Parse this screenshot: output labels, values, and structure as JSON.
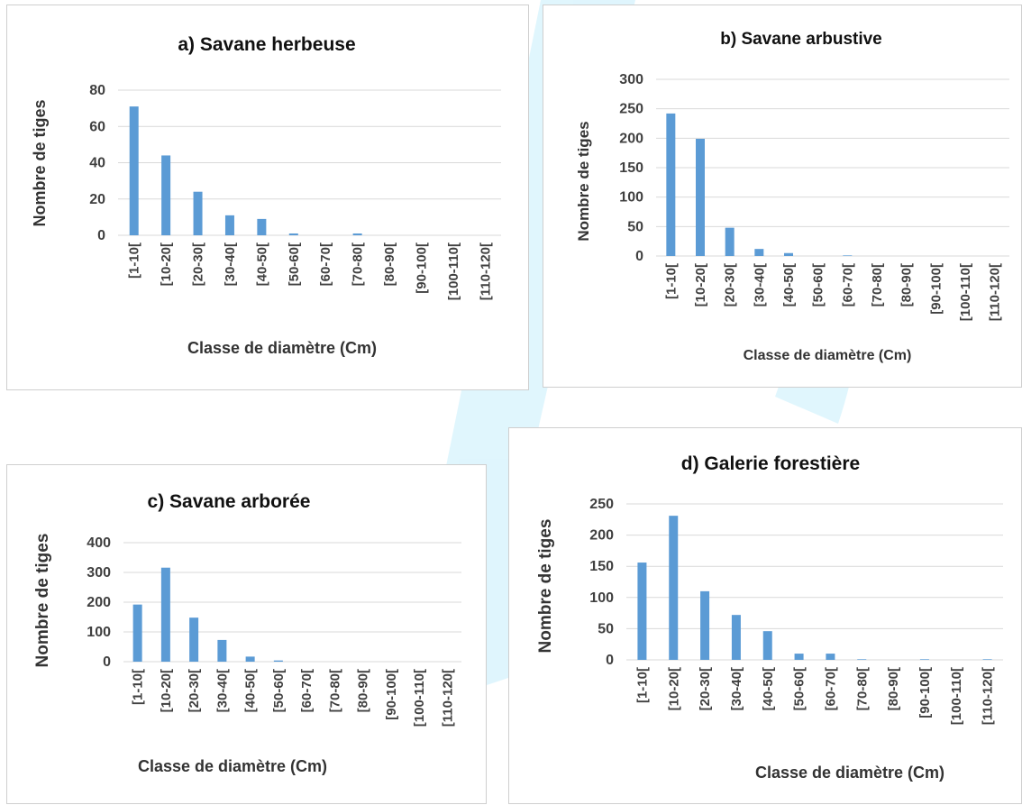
{
  "colors": {
    "bar": "#5b9bd5",
    "grid": "#d9d9d9",
    "watermark": "#00b4f0"
  },
  "chart_data": [
    {
      "id": "a",
      "type": "bar",
      "title": "a) Savane herbeuse",
      "xlabel": "Classe de diamètre (Cm)",
      "ylabel": "Nombre de tiges",
      "categories": [
        "[1-10[",
        "[10-20[",
        "[20-30[",
        "[30-40[",
        "[40-50[",
        "[50-60[",
        "[60-70[",
        "[70-80[",
        "[80-90[",
        "[90-100[",
        "[100-110[",
        "[110-120["
      ],
      "values": [
        71,
        44,
        24,
        11,
        9,
        1,
        0,
        1,
        0,
        0,
        0,
        0
      ],
      "ylim": [
        0,
        80
      ],
      "yticks": [
        0,
        20,
        40,
        60,
        80
      ],
      "grid": true,
      "legend": "none"
    },
    {
      "id": "b",
      "type": "bar",
      "title": "b) Savane arbustive",
      "xlabel": "Classe de diamètre (Cm)",
      "ylabel": "Nombre de tiges",
      "categories": [
        "[1-10[",
        "[10-20[",
        "[20-30[",
        "[30-40[",
        "[40-50[",
        "[50-60[",
        "[60-70[",
        "[70-80[",
        "[80-90[",
        "[90-100[",
        "[100-110[",
        "[110-120["
      ],
      "values": [
        242,
        199,
        48,
        12,
        5,
        0,
        1,
        0,
        0,
        0,
        0,
        0
      ],
      "ylim": [
        0,
        300
      ],
      "yticks": [
        0,
        50,
        100,
        150,
        200,
        250,
        300
      ],
      "grid": true,
      "legend": "none"
    },
    {
      "id": "c",
      "type": "bar",
      "title": "c) Savane arborée",
      "xlabel": "Classe de diamètre (Cm)",
      "ylabel": "Nombre de tiges",
      "categories": [
        "[1-10[",
        "[10-20[",
        "[20-30[",
        "[30-40[",
        "[40-50[",
        "[50-60[",
        "[60-70[",
        "[70-80[",
        "[80-90[",
        "[90-100[",
        "[100-110[",
        "[110-120["
      ],
      "values": [
        192,
        316,
        148,
        73,
        17,
        4,
        0,
        0,
        0,
        0,
        0,
        0
      ],
      "ylim": [
        0,
        400
      ],
      "yticks": [
        0,
        100,
        200,
        300,
        400
      ],
      "grid": true,
      "legend": "none"
    },
    {
      "id": "d",
      "type": "bar",
      "title": "d) Galerie forestière",
      "xlabel": "Classe de diamètre (Cm)",
      "ylabel": "Nombre de tiges",
      "categories": [
        "[1-10[",
        "[10-20[",
        "[20-30[",
        "[30-40[",
        "[40-50[",
        "[50-60[",
        "[60-70[",
        "[70-80[",
        "[80-90[",
        "[90-100[",
        "[100-110[",
        "[110-120["
      ],
      "values": [
        156,
        231,
        110,
        72,
        46,
        10,
        10,
        1,
        0,
        1,
        0,
        1
      ],
      "ylim": [
        0,
        250
      ],
      "yticks": [
        0,
        50,
        100,
        150,
        200,
        250
      ],
      "grid": true,
      "legend": "none"
    }
  ]
}
